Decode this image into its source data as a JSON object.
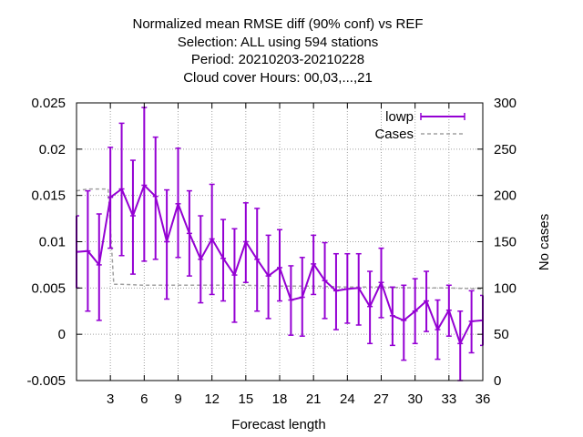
{
  "chart_data": {
    "type": "line",
    "title": [
      "Normalized mean RMSE diff (90% conf) vs REF",
      "Selection: ALL using   594 stations",
      "Period: 20210203-20210228",
      "Cloud cover   Hours:  00,03,...,21"
    ],
    "xlabel": "Forecast length",
    "ylabel": "",
    "y2label": "No cases",
    "xlim": [
      0,
      36
    ],
    "ylim": [
      -0.005,
      0.025
    ],
    "y2lim": [
      0,
      300
    ],
    "x_ticks": [
      3,
      6,
      9,
      12,
      15,
      18,
      21,
      24,
      27,
      30,
      33,
      36
    ],
    "y_ticks": [
      -0.005,
      0,
      0.005,
      0.01,
      0.015,
      0.02,
      0.025
    ],
    "y_tick_labels": [
      "-0.005",
      "0",
      "0.005",
      "0.01",
      "0.015",
      "0.02",
      "0.025"
    ],
    "y2_ticks": [
      0,
      50,
      100,
      150,
      200,
      250,
      300
    ],
    "grid": true,
    "legend_position": "top-right",
    "series": [
      {
        "name": "lowp",
        "style": "errorbars",
        "color": "#9400d3",
        "axis": "y1",
        "x": [
          0,
          1,
          2,
          3,
          4,
          5,
          6,
          7,
          8,
          9,
          10,
          11,
          12,
          13,
          14,
          15,
          16,
          17,
          18,
          19,
          20,
          21,
          22,
          23,
          24,
          25,
          26,
          27,
          28,
          29,
          30,
          31,
          32,
          33,
          34,
          35,
          36
        ],
        "y": [
          0.0089,
          0.009,
          0.0075,
          0.0148,
          0.0157,
          0.0128,
          0.0161,
          0.0149,
          0.01,
          0.0141,
          0.0109,
          0.0081,
          0.0103,
          0.0082,
          0.0064,
          0.01,
          0.0081,
          0.0063,
          0.0072,
          0.0037,
          0.004,
          0.0076,
          0.0058,
          0.0047,
          0.0049,
          0.005,
          0.003,
          0.0056,
          0.002,
          0.0015,
          0.0025,
          0.0036,
          0.0005,
          0.0026,
          -0.001,
          0.0014,
          0.0015
        ],
        "y_low": [
          0.005,
          0.0025,
          0.0015,
          0.0093,
          0.0085,
          0.0065,
          0.0079,
          0.0081,
          0.0038,
          0.0083,
          0.0063,
          0.0034,
          0.0043,
          0.0036,
          0.0013,
          0.0056,
          0.0025,
          0.0017,
          0.0036,
          -0.0001,
          -0.0002,
          0.0043,
          0.0017,
          0.0005,
          0.0012,
          0.001,
          -0.001,
          0.0018,
          -0.0012,
          -0.0028,
          -0.001,
          0.0003,
          -0.0027,
          -0.0002,
          -0.005,
          -0.002,
          -0.0012
        ],
        "y_high": [
          0.0128,
          0.0155,
          0.013,
          0.0202,
          0.0228,
          0.0188,
          0.0245,
          0.0213,
          0.0156,
          0.0201,
          0.0155,
          0.0128,
          0.0162,
          0.0124,
          0.0114,
          0.0142,
          0.0136,
          0.0107,
          0.0113,
          0.0074,
          0.0083,
          0.0107,
          0.0099,
          0.0087,
          0.0087,
          0.0087,
          0.0068,
          0.0093,
          0.0051,
          0.0053,
          0.006,
          0.0068,
          0.0037,
          0.0053,
          0.0025,
          0.0047,
          0.0042
        ]
      },
      {
        "name": "Cases",
        "style": "dashed-line",
        "color": "#a0a0a0",
        "axis": "y2",
        "x": [
          0,
          1,
          2,
          2.8,
          3.3,
          4,
          6,
          9,
          12,
          15,
          18,
          21,
          24,
          27,
          30,
          33,
          36
        ],
        "y": [
          205,
          207,
          207,
          207,
          104,
          104,
          103,
          103,
          103,
          103,
          102,
          102,
          101,
          101,
          100,
          100,
          99
        ]
      }
    ]
  },
  "colors": {
    "background": "#ffffff",
    "grid": "#a0a0a0",
    "axis": "#000000"
  }
}
